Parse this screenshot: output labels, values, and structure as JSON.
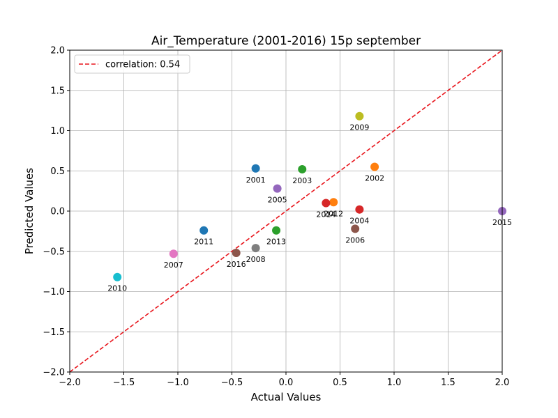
{
  "chart_data": {
    "type": "scatter",
    "title": "Air_Temperature (2001-2016) 15p september",
    "xlabel": "Actual Values",
    "ylabel": "Predicted Values",
    "xlim": [
      -2.0,
      2.0
    ],
    "ylim": [
      -2.0,
      2.0
    ],
    "xticks": [
      "−2.0",
      "−1.5",
      "−1.0",
      "−0.5",
      "0.0",
      "0.5",
      "1.0",
      "1.5",
      "2.0"
    ],
    "yticks": [
      "−2.0",
      "−1.5",
      "−1.0",
      "−0.5",
      "0.0",
      "0.5",
      "1.0",
      "1.5",
      "2.0"
    ],
    "grid": true,
    "legend": {
      "position": "top-left",
      "entries": [
        {
          "label": "correlation: 0.54",
          "color": "#e8141b",
          "style": "dashed"
        }
      ]
    },
    "reference_line": {
      "from": [
        -2.0,
        -2.0
      ],
      "to": [
        2.0,
        2.0
      ],
      "color": "#e8141b",
      "style": "dashed"
    },
    "points": [
      {
        "label": "2001",
        "x": -0.28,
        "y": 0.53,
        "color": "#1f77b4"
      },
      {
        "label": "2002",
        "x": 0.82,
        "y": 0.55,
        "color": "#ff7f0e"
      },
      {
        "label": "2003",
        "x": 0.15,
        "y": 0.52,
        "color": "#2ca02c"
      },
      {
        "label": "2004",
        "x": 0.68,
        "y": 0.02,
        "color": "#d62728"
      },
      {
        "label": "2005",
        "x": -0.08,
        "y": 0.28,
        "color": "#9467bd"
      },
      {
        "label": "2006",
        "x": 0.64,
        "y": -0.22,
        "color": "#8c564b"
      },
      {
        "label": "2007",
        "x": -1.04,
        "y": -0.53,
        "color": "#e377c2"
      },
      {
        "label": "2008",
        "x": -0.28,
        "y": -0.46,
        "color": "#7f7f7f"
      },
      {
        "label": "2009",
        "x": 0.68,
        "y": 1.18,
        "color": "#bcbd22"
      },
      {
        "label": "2010",
        "x": -1.56,
        "y": -0.82,
        "color": "#17becf"
      },
      {
        "label": "2011",
        "x": -0.76,
        "y": -0.24,
        "color": "#1f77b4"
      },
      {
        "label": "2012",
        "x": 0.44,
        "y": 0.11,
        "color": "#ff7f0e"
      },
      {
        "label": "2013",
        "x": -0.09,
        "y": -0.24,
        "color": "#2ca02c"
      },
      {
        "label": "2014",
        "x": 0.37,
        "y": 0.1,
        "color": "#d62728"
      },
      {
        "label": "2015",
        "x": 2.0,
        "y": 0.0,
        "color": "#9467bd"
      },
      {
        "label": "2016",
        "x": -0.46,
        "y": -0.52,
        "color": "#8c564b"
      }
    ]
  }
}
